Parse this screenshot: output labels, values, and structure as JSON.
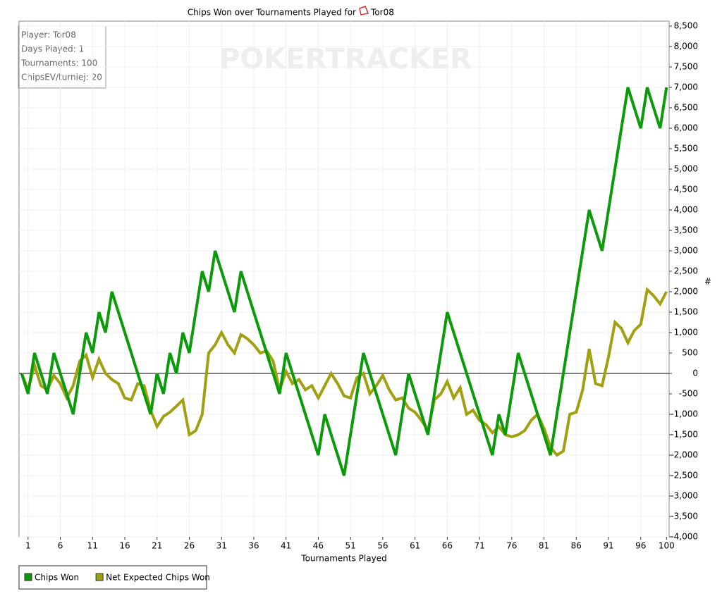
{
  "chart_data": {
    "type": "line",
    "title": "Chips Won over Tournaments Played for",
    "player": "Tor08",
    "watermark": "POKERTRACKER",
    "info": [
      "Player: Tor08",
      "Days Played: 1",
      "Tournaments: 100",
      "ChipsEV/turniej: 20"
    ],
    "xlabel": "Tournaments Played",
    "ylabel": "#",
    "x": [
      0,
      1,
      2,
      3,
      4,
      5,
      6,
      7,
      8,
      9,
      10,
      11,
      12,
      13,
      14,
      15,
      16,
      17,
      18,
      19,
      20,
      21,
      22,
      23,
      24,
      25,
      26,
      27,
      28,
      29,
      30,
      31,
      32,
      33,
      34,
      35,
      36,
      37,
      38,
      39,
      40,
      41,
      42,
      43,
      44,
      45,
      46,
      47,
      48,
      49,
      50,
      51,
      52,
      53,
      54,
      55,
      56,
      57,
      58,
      59,
      60,
      61,
      62,
      63,
      64,
      65,
      66,
      67,
      68,
      69,
      70,
      71,
      72,
      73,
      74,
      75,
      76,
      77,
      78,
      79,
      80,
      81,
      82,
      83,
      84,
      85,
      86,
      87,
      88,
      89,
      90,
      91,
      92,
      93,
      94,
      95,
      96,
      97,
      98,
      99,
      100
    ],
    "series": [
      {
        "name": "Chips Won",
        "color": "#0a9a0a",
        "values": [
          0,
          -500,
          500,
          0,
          -500,
          500,
          0,
          -500,
          -1000,
          0,
          1000,
          500,
          1500,
          1000,
          2000,
          1500,
          1000,
          500,
          0,
          -500,
          -1000,
          0,
          -500,
          500,
          0,
          1000,
          500,
          1500,
          2500,
          2000,
          3000,
          2500,
          2000,
          1500,
          2500,
          2000,
          1500,
          1000,
          500,
          0,
          -500,
          500,
          0,
          -500,
          -1000,
          -1500,
          -2000,
          -1000,
          -1500,
          -2000,
          -2500,
          -1500,
          -500,
          500,
          0,
          -500,
          -1000,
          -1500,
          -2000,
          -1000,
          0,
          -500,
          -1000,
          -1500,
          -500,
          500,
          1500,
          1000,
          500,
          0,
          -500,
          -1000,
          -1500,
          -2000,
          -1000,
          -1500,
          -500,
          500,
          0,
          -500,
          -1000,
          -1500,
          -2000,
          -1000,
          0,
          1000,
          2000,
          3000,
          4000,
          3500,
          3000,
          4000,
          5000,
          6000,
          7000,
          6500,
          6000,
          7000,
          6500,
          6000,
          7000
        ]
      },
      {
        "name": "Net Expected Chips Won",
        "color": "#a0a010",
        "values": [
          0,
          -400,
          200,
          -300,
          -400,
          -50,
          -250,
          -600,
          -300,
          300,
          450,
          -100,
          350,
          0,
          -150,
          -250,
          -600,
          -650,
          -250,
          -300,
          -900,
          -1300,
          -1050,
          -950,
          -800,
          -650,
          -1500,
          -1400,
          -1000,
          500,
          700,
          1000,
          700,
          500,
          950,
          850,
          700,
          500,
          550,
          300,
          -400,
          50,
          -250,
          -150,
          -400,
          -300,
          -600,
          -300,
          0,
          -250,
          -550,
          -600,
          -100,
          0,
          -500,
          -300,
          -50,
          -400,
          -650,
          -600,
          -850,
          -950,
          -1150,
          -1400,
          -650,
          -500,
          -200,
          -600,
          -350,
          -1000,
          -900,
          -1150,
          -1250,
          -1450,
          -1300,
          -1500,
          -1550,
          -1500,
          -1400,
          -1150,
          -1000,
          -1350,
          -1800,
          -2000,
          -1900,
          -1000,
          -950,
          -400,
          600,
          -250,
          -300,
          400,
          1250,
          1100,
          750,
          1050,
          1200,
          2050,
          1900,
          1700,
          2000
        ]
      }
    ],
    "xlim": [
      -0.4,
      100.4
    ],
    "ylim": [
      -4000,
      8500
    ],
    "xticks": [
      1,
      6,
      11,
      16,
      21,
      26,
      31,
      36,
      41,
      46,
      51,
      56,
      61,
      66,
      71,
      76,
      81,
      86,
      91,
      96,
      100
    ],
    "yticks": [
      {
        "value": -4000,
        "label": "-4,000"
      },
      {
        "value": -3500,
        "label": "-3,500"
      },
      {
        "value": -3000,
        "label": "-3,000"
      },
      {
        "value": -2500,
        "label": "-2,500"
      },
      {
        "value": -2000,
        "label": "-2,000"
      },
      {
        "value": -1500,
        "label": "-1,500"
      },
      {
        "value": -1000,
        "label": "-1,000"
      },
      -500,
      0,
      500,
      {
        "value": 1000,
        "label": "1,000"
      },
      {
        "value": 1500,
        "label": "1,500"
      },
      {
        "value": 2000,
        "label": "2,000"
      },
      {
        "value": 2500,
        "label": "2,500"
      },
      {
        "value": 3000,
        "label": "3,000"
      },
      {
        "value": 3500,
        "label": "3,500"
      },
      {
        "value": 4000,
        "label": "4,000"
      },
      {
        "value": 4500,
        "label": "4,500"
      },
      {
        "value": 5000,
        "label": "5,000"
      },
      {
        "value": 5500,
        "label": "5,500"
      },
      {
        "value": 6000,
        "label": "6,000"
      },
      {
        "value": 6500,
        "label": "6,500"
      },
      {
        "value": 7000,
        "label": "7,000"
      },
      {
        "value": 7500,
        "label": "7,500"
      },
      {
        "value": 8000,
        "label": "8,000"
      },
      {
        "value": 8500,
        "label": "8,500"
      }
    ],
    "grid": true,
    "zero_line": true
  }
}
